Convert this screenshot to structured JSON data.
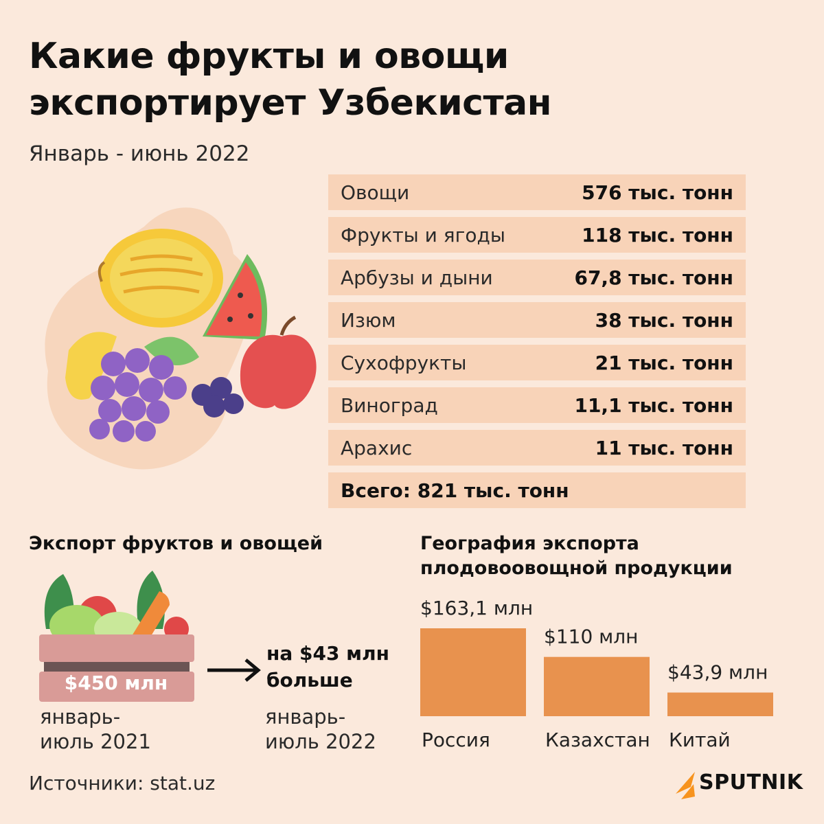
{
  "header": {
    "title_line1": "Какие фрукты и овощи",
    "title_line2": "экспортирует Узбекистан",
    "subtitle": "Январь - июнь 2022"
  },
  "table": {
    "rows": [
      {
        "name": "Овощи",
        "value": "576 тыс. тонн"
      },
      {
        "name": "Фрукты и ягоды",
        "value": "118 тыс. тонн"
      },
      {
        "name": "Арбузы и дыни",
        "value": "67,8 тыс. тонн"
      },
      {
        "name": "Изюм",
        "value": "38 тыс. тонн"
      },
      {
        "name": "Сухофрукты",
        "value": "21 тыс. тонн"
      },
      {
        "name": "Виноград",
        "value": "11,1 тыс. тонн"
      },
      {
        "name": "Арахис",
        "value": "11 тыс. тонн"
      }
    ],
    "total": "Всего: 821 тыс. тонн"
  },
  "export": {
    "title": "Экспорт фруктов и овощей",
    "amount_2021": "$450 млн",
    "period_2021_line1": "январь-",
    "period_2021_line2": "июль 2021",
    "difference_line1": "на $43 млн",
    "difference_line2": "больше",
    "period_2022_line1": "январь-",
    "period_2022_line2": "июль 2022"
  },
  "geography": {
    "title": "География экспорта плодовоовощной продукции"
  },
  "chart_data": {
    "type": "bar",
    "categories": [
      "Россия",
      "Казахстан",
      "Китай"
    ],
    "values": [
      163.1,
      110,
      43.9
    ],
    "data_labels": [
      "$163,1 млн",
      "$110 млн",
      "$43,9 млн"
    ],
    "unit": "млн $",
    "bar_color": "#e8924e"
  },
  "footer": {
    "source": "Источники: stat.uz",
    "logo": "SPUTNIK",
    "logo_color": "#f7931e"
  },
  "icons": {
    "illustration": "fruits-illustration",
    "crate": "vegetable-crate-icon",
    "arrow": "arrow-right-icon",
    "logo": "sputnik-logo-icon"
  }
}
